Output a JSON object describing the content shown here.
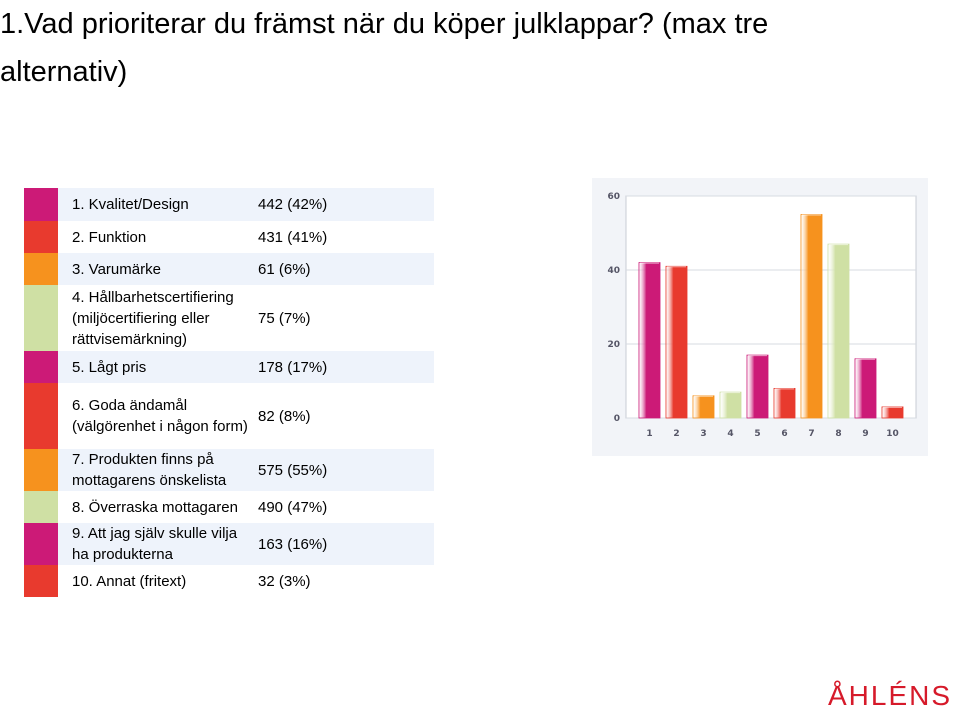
{
  "title": "1.Vad prioriterar du främst när du köper julklappar? (max tre alternativ)",
  "legend": [
    {
      "label": "1. Kvalitet/Design",
      "value": "442 (42%)",
      "color": "#cc1a77"
    },
    {
      "label": "2. Funktion",
      "value": "431 (41%)",
      "color": "#e83a2e"
    },
    {
      "label": "3. Varumärke",
      "value": "61 (6%)",
      "color": "#f6921e"
    },
    {
      "label": "4. Hållbarhetscertifiering (miljöcertifiering eller rättvisemärkning)",
      "value": "75 (7%)",
      "color": "#cfe0a4"
    },
    {
      "label": "5. Lågt pris",
      "value": "178 (17%)",
      "color": "#cc1a77"
    },
    {
      "label": "6. Goda ändamål (välgörenhet i någon form)",
      "value": "82 (8%)",
      "color": "#e83a2e"
    },
    {
      "label": "7. Produkten finns på mottagarens önskelista",
      "value": "575 (55%)",
      "color": "#f6921e"
    },
    {
      "label": "8. Överraska mottagaren",
      "value": "490 (47%)",
      "color": "#cfe0a4"
    },
    {
      "label": "9. Att jag själv skulle vilja ha produkterna",
      "value": "163 (16%)",
      "color": "#cc1a77"
    },
    {
      "label": "10. Annat (fritext)",
      "value": "32 (3%)",
      "color": "#e83a2e"
    }
  ],
  "chart_data": {
    "type": "bar",
    "categories": [
      "1",
      "2",
      "3",
      "4",
      "5",
      "6",
      "7",
      "8",
      "9",
      "10"
    ],
    "values": [
      42,
      41,
      6,
      7,
      17,
      8,
      55,
      47,
      16,
      3
    ],
    "ylim": [
      0,
      60
    ],
    "yticks": [
      "0",
      "20",
      "40",
      "60"
    ],
    "grid": true,
    "bar_colors": [
      "#cc1a77",
      "#e83a2e",
      "#f6921e",
      "#cfe0a4",
      "#cc1a77",
      "#e83a2e",
      "#f6921e",
      "#cfe0a4",
      "#cc1a77",
      "#e83a2e"
    ],
    "title": "",
    "xlabel": "",
    "ylabel": ""
  },
  "logo": {
    "text": "ÅHLÉNS"
  }
}
